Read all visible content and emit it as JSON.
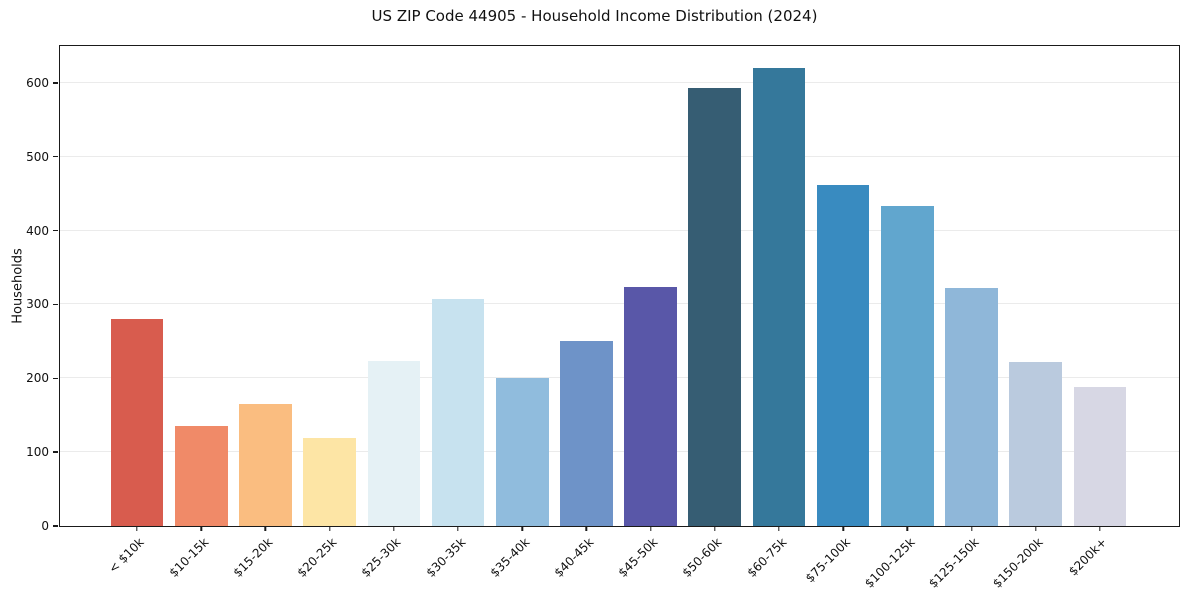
{
  "figure": {
    "title": "US ZIP Code 44905 - Household Income Distribution (2024)"
  },
  "chart_data": {
    "type": "bar",
    "title": "US ZIP Code 44905 - Household Income Distribution (2024)",
    "xlabel": "",
    "ylabel": "Households",
    "categories": [
      "< $10k",
      "$10-15k",
      "$15-20k",
      "$20-25k",
      "$25-30k",
      "$30-35k",
      "$35-40k",
      "$40-45k",
      "$45-50k",
      "$50-60k",
      "$60-75k",
      "$75-100k",
      "$100-125k",
      "$125-150k",
      "$150-200k",
      "$200k+"
    ],
    "values": [
      281,
      136,
      165,
      119,
      223,
      308,
      200,
      250,
      323,
      593,
      620,
      462,
      433,
      322,
      222,
      188
    ],
    "bar_colors": [
      "#d85c4e",
      "#f08a68",
      "#fabd80",
      "#fde5a5",
      "#e5f1f5",
      "#c7e2ef",
      "#90bcdd",
      "#6e93c8",
      "#5957a8",
      "#365d73",
      "#35789b",
      "#398bc0",
      "#61a6ce",
      "#8fb7d9",
      "#bacade",
      "#d7d7e4"
    ],
    "ylim": [
      0,
      650
    ],
    "yticks": [
      0,
      100,
      200,
      300,
      400,
      500,
      600
    ],
    "grid": "horizontal",
    "grid_color": "#ebebeb",
    "spine_color": "#1a1a1a",
    "background": "#ffffff",
    "legend": "none"
  }
}
